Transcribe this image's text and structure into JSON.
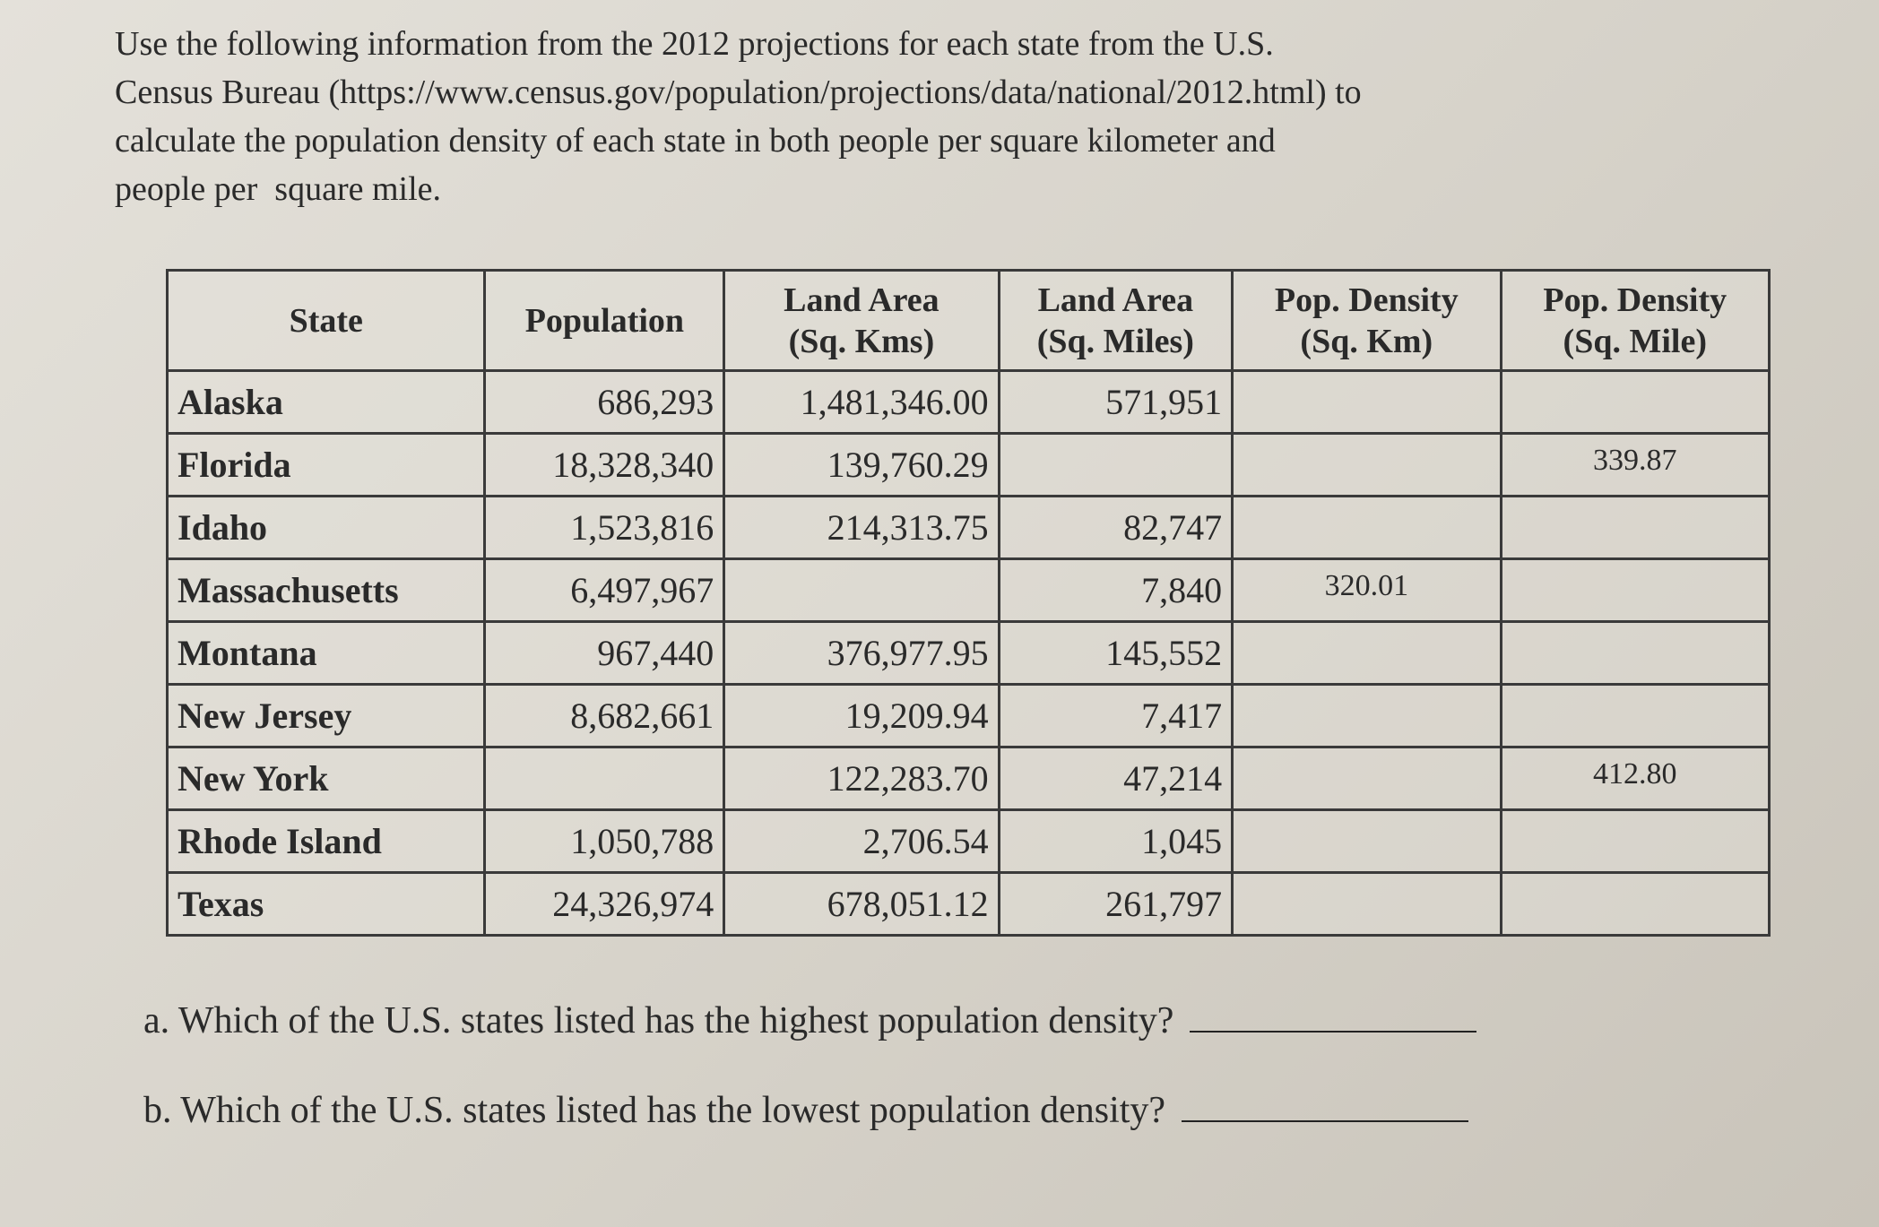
{
  "instructions": [
    "Use the following information from the 2012 projections for each state from the U.S.",
    "Census Bureau (https://www.census.gov/population/projections/data/national/2012.html) to",
    "calculate the population density of each state in both people per square kilometer and",
    "people per  square mile."
  ],
  "table": {
    "header": [
      [
        "State"
      ],
      [
        "Population"
      ],
      [
        "Land Area",
        "(Sq. Kms)"
      ],
      [
        "Land Area",
        "(Sq. Miles)"
      ],
      [
        "Pop. Density",
        "(Sq. Km)"
      ],
      [
        "Pop. Density",
        "(Sq. Mile)"
      ]
    ],
    "rows": [
      [
        "Alaska",
        "686,293",
        "1,481,346.00",
        "571,951",
        null,
        null
      ],
      [
        "Florida",
        "18,328,340",
        "139,760.29",
        null,
        null,
        "339.87"
      ],
      [
        "Idaho",
        "1,523,816",
        "214,313.75",
        "82,747",
        null,
        null
      ],
      [
        "Massachusetts",
        "6,497,967",
        null,
        "7,840",
        "320.01",
        null
      ],
      [
        "Montana",
        "967,440",
        "376,977.95",
        "145,552",
        null,
        null
      ],
      [
        "New Jersey",
        "8,682,661",
        "19,209.94",
        "7,417",
        null,
        null
      ],
      [
        "New York",
        null,
        "122,283.70",
        "47,214",
        null,
        "412.80"
      ],
      [
        "Rhode Island",
        "1,050,788",
        "2,706.54",
        "1,045",
        null,
        null
      ],
      [
        "Texas",
        "24,326,974",
        "678,051.12",
        "261,797",
        null,
        null
      ]
    ]
  },
  "questions": [
    "a. Which of the U.S. states listed has the highest population density?",
    "b. Which of the U.S. states listed has the lowest population density?"
  ]
}
